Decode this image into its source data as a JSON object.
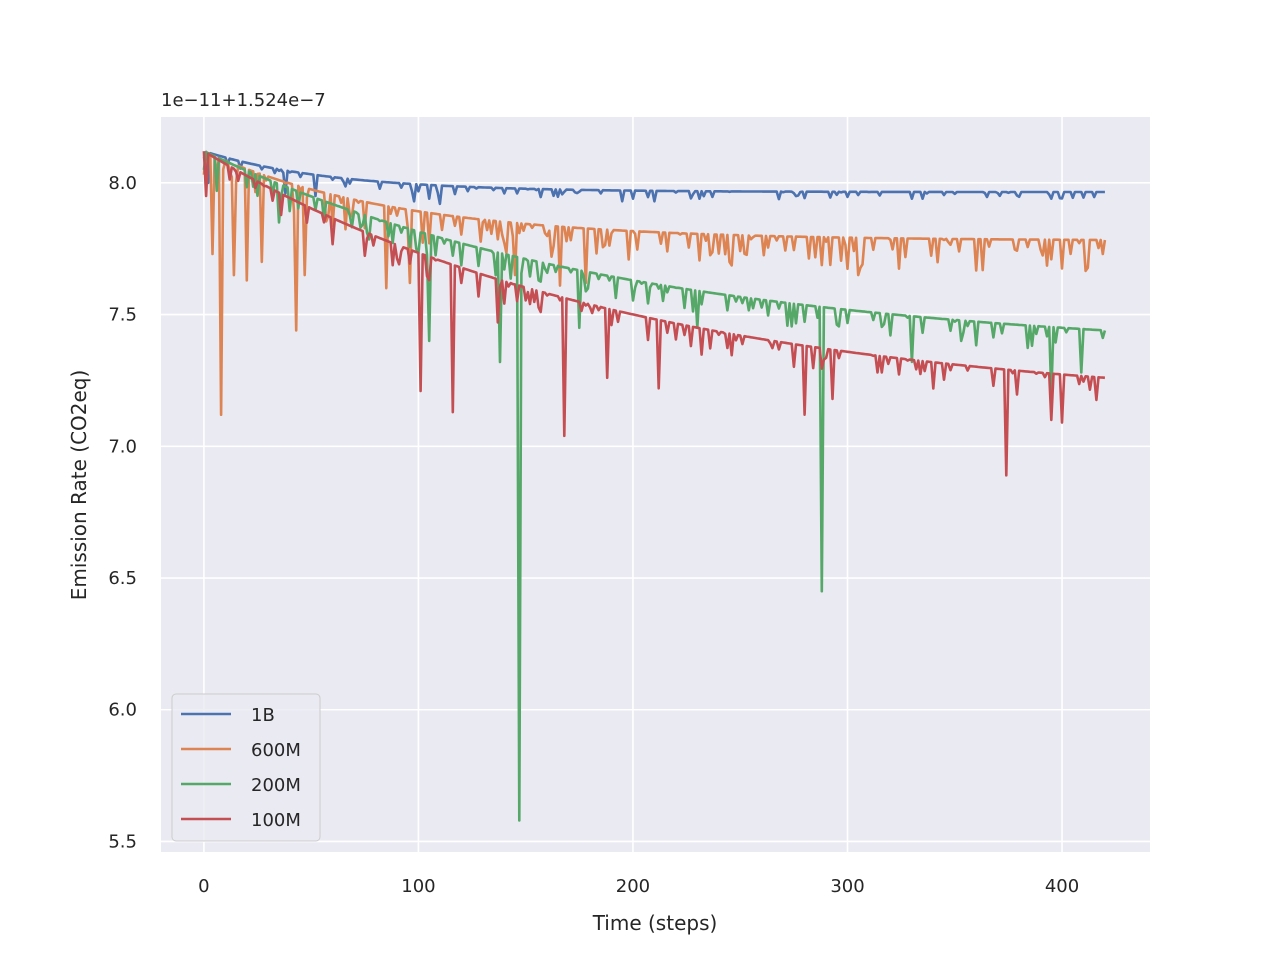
{
  "chart_data": {
    "type": "line",
    "title": "",
    "xlabel": "Time (steps)",
    "ylabel": "Emission Rate (CO2eq)",
    "y_offset_label": "1e−11+1.524e−7",
    "xlim": [
      -20,
      441
    ],
    "ylim": [
      5.46,
      8.25
    ],
    "xticks": [
      0,
      100,
      200,
      300,
      400
    ],
    "xtick_labels": [
      "0",
      "100",
      "200",
      "300",
      "400"
    ],
    "yticks": [
      5.5,
      6.0,
      6.5,
      7.0,
      7.5,
      8.0
    ],
    "ytick_labels": [
      "5.5",
      "6.0",
      "6.5",
      "7.0",
      "7.5",
      "8.0"
    ],
    "grid": true,
    "legend_position": "lower left",
    "n_steps": 421,
    "series": [
      {
        "name": "1B",
        "color": "#4c72b0",
        "start": 8.12,
        "end": 7.965,
        "decay": 60,
        "noise_amp": 0.03,
        "noise_period": 5,
        "dips": [
          [
            2,
            8.0
          ],
          [
            38,
            7.96
          ],
          [
            52,
            7.95
          ],
          [
            98,
            7.93
          ],
          [
            105,
            7.94
          ],
          [
            110,
            7.92
          ],
          [
            140,
            7.96
          ],
          [
            146,
            7.96
          ],
          [
            195,
            7.93
          ],
          [
            200,
            7.94
          ],
          [
            210,
            7.93
          ],
          [
            335,
            7.94
          ],
          [
            395,
            7.94
          ]
        ]
      },
      {
        "name": "600M",
        "color": "#dd8452",
        "start": 8.12,
        "end": 7.78,
        "decay": 90,
        "noise_amp": 0.12,
        "noise_period": 3,
        "dips": [
          [
            4,
            7.73
          ],
          [
            8,
            7.12
          ],
          [
            14,
            7.65
          ],
          [
            20,
            7.63
          ],
          [
            27,
            7.7
          ],
          [
            43,
            7.44
          ],
          [
            47,
            7.65
          ],
          [
            85,
            7.6
          ],
          [
            96,
            7.62
          ],
          [
            145,
            7.65
          ],
          [
            166,
            7.61
          ],
          [
            178,
            7.62
          ],
          [
            245,
            7.7
          ],
          [
            305,
            7.65
          ],
          [
            395,
            7.71
          ],
          [
            419,
            7.73
          ]
        ]
      },
      {
        "name": "200M",
        "color": "#55a868",
        "start": 8.12,
        "end": 7.345,
        "decay": 200,
        "noise_amp": 0.09,
        "noise_period": 4,
        "dips": [
          [
            6,
            7.97
          ],
          [
            35,
            7.85
          ],
          [
            105,
            7.4
          ],
          [
            138,
            7.32
          ],
          [
            147,
            5.58
          ],
          [
            175,
            7.45
          ],
          [
            230,
            7.45
          ],
          [
            288,
            6.45
          ],
          [
            330,
            7.32
          ],
          [
            395,
            7.2
          ],
          [
            409,
            7.28
          ]
        ]
      },
      {
        "name": "100M",
        "color": "#c44e52",
        "start": 8.12,
        "end": 7.14,
        "decay": 200,
        "noise_amp": 0.1,
        "noise_period": 4,
        "dips": [
          [
            1,
            7.95
          ],
          [
            101,
            7.21
          ],
          [
            116,
            7.13
          ],
          [
            137,
            7.47
          ],
          [
            168,
            7.04
          ],
          [
            188,
            7.26
          ],
          [
            212,
            7.22
          ],
          [
            280,
            7.12
          ],
          [
            293,
            7.18
          ],
          [
            374,
            6.89
          ],
          [
            395,
            7.1
          ],
          [
            400,
            7.09
          ]
        ]
      }
    ]
  }
}
